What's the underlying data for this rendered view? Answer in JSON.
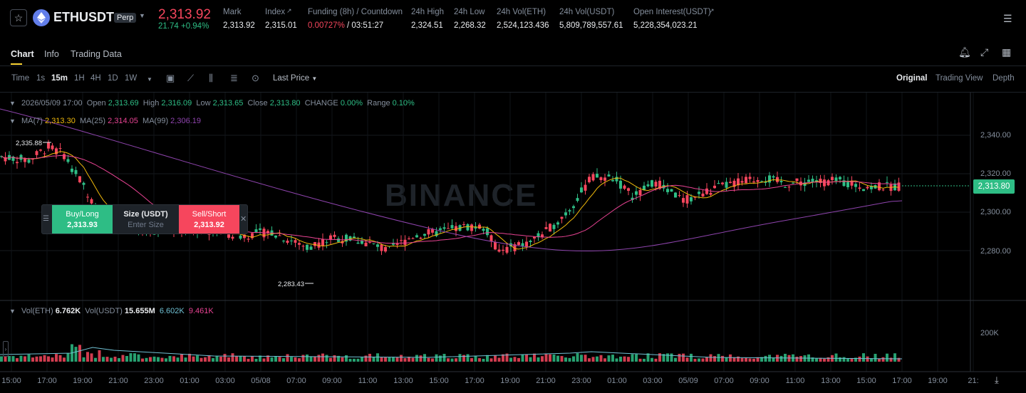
{
  "header": {
    "symbol": "ETHUSDT",
    "perp_badge": "Perp",
    "last_price": "2,313.92",
    "change": "21.74 +0.94%",
    "stats": [
      {
        "label": "Mark",
        "value": "2,313.92",
        "x": 313
      },
      {
        "label": "Index",
        "value": "2,315.01",
        "x": 372
      },
      {
        "label": "Funding (8h) / Countdown",
        "value": "0.00727%",
        "value2": " / 03:51:27",
        "x": 432
      },
      {
        "label": "24h High",
        "value": "2,324.51",
        "x": 577
      },
      {
        "label": "24h Low",
        "value": "2,268.32",
        "x": 637
      },
      {
        "label": "24h Vol(ETH)",
        "value": "2,524,123.436",
        "x": 697
      },
      {
        "label": "24h Vol(USDT)",
        "value": "5,809,789,557.61",
        "x": 785
      },
      {
        "label": "Open Interest(USDT)",
        "value": "5,228,354,023.21",
        "x": 889
      }
    ]
  },
  "tabs": [
    "Chart",
    "Info",
    "Trading Data"
  ],
  "toolbar": {
    "intervals": [
      "Time",
      "1s",
      "15m",
      "1H",
      "4H",
      "1D",
      "1W"
    ],
    "price_type": "Last Price",
    "views": [
      "Original",
      "Trading View",
      "Depth"
    ]
  },
  "ohlc": {
    "date": "2026/05/09 17:00",
    "open_label": "Open",
    "open": "2,313.69",
    "high_label": "High",
    "high": "2,316.09",
    "low_label": "Low",
    "low": "2,313.65",
    "close_label": "Close",
    "close": "2,313.80",
    "change_label": "CHANGE",
    "change": "0.00%",
    "range_label": "Range",
    "range": "0.10%"
  },
  "ma": {
    "ma7_label": "MA(7)",
    "ma7": "2,313.30",
    "ma25_label": "MA(25)",
    "ma25": "2,314.05",
    "ma99_label": "MA(99)",
    "ma99": "2,306.19"
  },
  "price_axis": [
    "2,340.00",
    "2,320.00",
    "2,300.00",
    "2,280.00"
  ],
  "current_price_tag": "2,313.80",
  "high_marker": "2,335.88",
  "low_marker": "2,283.43",
  "watermark": "BINANCE",
  "order_panel": {
    "buy_label": "Buy/Long",
    "buy_price": "2,313.93",
    "size_label": "Size (USDT)",
    "size_placeholder": "Enter Size",
    "sell_label": "Sell/Short",
    "sell_price": "2,313.92"
  },
  "volume": {
    "vol_eth_label": "Vol(ETH)",
    "vol_eth": "6.762K",
    "vol_usdt_label": "Vol(USDT)",
    "vol_usdt": "15.655M",
    "ma1": "6.602K",
    "ma2": "9.461K",
    "axis": "200K"
  },
  "time_axis": [
    "15:00",
    "17:00",
    "19:00",
    "21:00",
    "23:00",
    "01:00",
    "03:00",
    "05/08",
    "07:00",
    "09:00",
    "11:00",
    "13:00",
    "15:00",
    "17:00",
    "19:00",
    "21:00",
    "23:00",
    "01:00",
    "03:00",
    "05/09",
    "07:00",
    "09:00",
    "11:00",
    "13:00",
    "15:00",
    "17:00",
    "19:00",
    "21:"
  ],
  "colors": {
    "up": "#2ebd85",
    "down": "#f6465d",
    "ma7": "#f0b90b",
    "ma25": "#e84393",
    "ma99": "#8e44ad"
  }
}
